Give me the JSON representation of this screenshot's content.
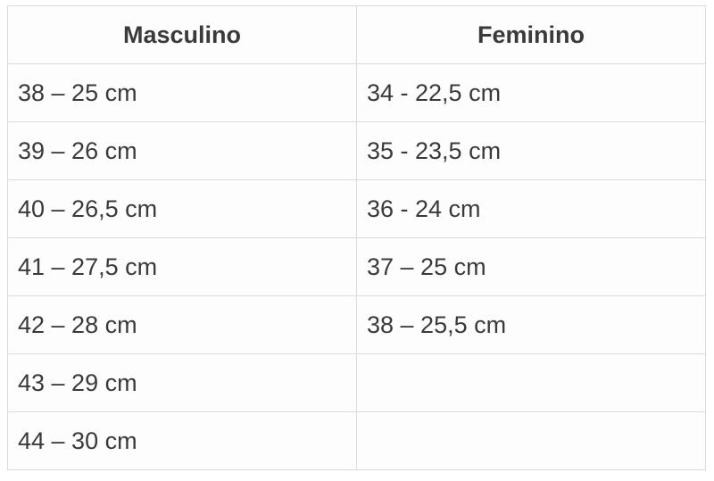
{
  "headers": [
    "Masculino",
    "Feminino"
  ],
  "rows": [
    [
      "38 – 25 cm",
      "34 - 22,5 cm"
    ],
    [
      "39 – 26 cm",
      "35 - 23,5 cm"
    ],
    [
      "40 – 26,5 cm",
      "36 - 24 cm"
    ],
    [
      "41 – 27,5 cm",
      "37 – 25 cm"
    ],
    [
      "42 – 28 cm",
      "38 – 25,5 cm"
    ],
    [
      "43 – 29 cm",
      ""
    ],
    [
      "44 – 30 cm",
      ""
    ]
  ]
}
